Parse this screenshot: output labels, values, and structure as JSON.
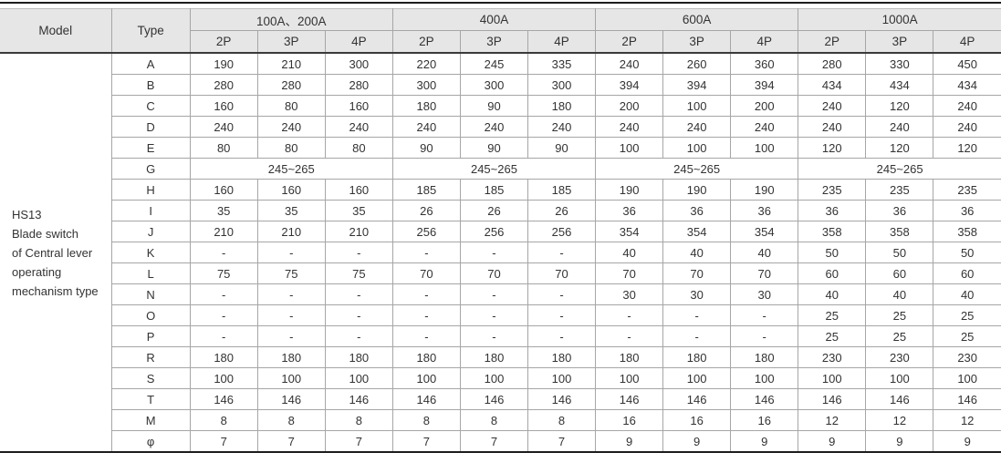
{
  "table": {
    "header": {
      "model_label": "Model",
      "type_label": "Type",
      "groups": [
        "100A、200A",
        "400A",
        "600A",
        "1000A"
      ],
      "pole_labels": [
        "2P",
        "3P",
        "4P"
      ]
    },
    "model_cell": {
      "lines": [
        "HS13",
        "Blade switch",
        "of Central lever",
        "operating",
        "mechanism type"
      ]
    },
    "rows": [
      {
        "type": "A",
        "values": [
          "190",
          "210",
          "300",
          "220",
          "245",
          "335",
          "240",
          "260",
          "360",
          "280",
          "330",
          "450"
        ]
      },
      {
        "type": "B",
        "values": [
          "280",
          "280",
          "280",
          "300",
          "300",
          "300",
          "394",
          "394",
          "394",
          "434",
          "434",
          "434"
        ]
      },
      {
        "type": "C",
        "values": [
          "160",
          "80",
          "160",
          "180",
          "90",
          "180",
          "200",
          "100",
          "200",
          "240",
          "120",
          "240"
        ]
      },
      {
        "type": "D",
        "values": [
          "240",
          "240",
          "240",
          "240",
          "240",
          "240",
          "240",
          "240",
          "240",
          "240",
          "240",
          "240"
        ]
      },
      {
        "type": "E",
        "values": [
          "80",
          "80",
          "80",
          "90",
          "90",
          "90",
          "100",
          "100",
          "100",
          "120",
          "120",
          "120"
        ]
      },
      {
        "type": "G",
        "merged": true,
        "values": [
          "245~265",
          "245~265",
          "245~265",
          "245~265"
        ]
      },
      {
        "type": "H",
        "values": [
          "160",
          "160",
          "160",
          "185",
          "185",
          "185",
          "190",
          "190",
          "190",
          "235",
          "235",
          "235"
        ]
      },
      {
        "type": "I",
        "values": [
          "35",
          "35",
          "35",
          "26",
          "26",
          "26",
          "36",
          "36",
          "36",
          "36",
          "36",
          "36"
        ]
      },
      {
        "type": "J",
        "values": [
          "210",
          "210",
          "210",
          "256",
          "256",
          "256",
          "354",
          "354",
          "354",
          "358",
          "358",
          "358"
        ]
      },
      {
        "type": "K",
        "values": [
          "-",
          "-",
          "-",
          "-",
          "-",
          "-",
          "40",
          "40",
          "40",
          "50",
          "50",
          "50"
        ]
      },
      {
        "type": "L",
        "values": [
          "75",
          "75",
          "75",
          "70",
          "70",
          "70",
          "70",
          "70",
          "70",
          "60",
          "60",
          "60"
        ]
      },
      {
        "type": "N",
        "values": [
          "-",
          "-",
          "-",
          "-",
          "-",
          "-",
          "30",
          "30",
          "30",
          "40",
          "40",
          "40"
        ]
      },
      {
        "type": "O",
        "values": [
          "-",
          "-",
          "-",
          "-",
          "-",
          "-",
          "-",
          "-",
          "-",
          "25",
          "25",
          "25"
        ]
      },
      {
        "type": "P",
        "values": [
          "-",
          "-",
          "-",
          "-",
          "-",
          "-",
          "-",
          "-",
          "-",
          "25",
          "25",
          "25"
        ]
      },
      {
        "type": "R",
        "values": [
          "180",
          "180",
          "180",
          "180",
          "180",
          "180",
          "180",
          "180",
          "180",
          "230",
          "230",
          "230"
        ]
      },
      {
        "type": "S",
        "values": [
          "100",
          "100",
          "100",
          "100",
          "100",
          "100",
          "100",
          "100",
          "100",
          "100",
          "100",
          "100"
        ]
      },
      {
        "type": "T",
        "values": [
          "146",
          "146",
          "146",
          "146",
          "146",
          "146",
          "146",
          "146",
          "146",
          "146",
          "146",
          "146"
        ]
      },
      {
        "type": "M",
        "values": [
          "8",
          "8",
          "8",
          "8",
          "8",
          "8",
          "16",
          "16",
          "16",
          "12",
          "12",
          "12"
        ]
      },
      {
        "type": "φ",
        "values": [
          "7",
          "7",
          "7",
          "7",
          "7",
          "7",
          "9",
          "9",
          "9",
          "9",
          "9",
          "9"
        ]
      }
    ],
    "colors": {
      "header_bg": "#e6e6e6",
      "border_light": "#a6a6a6",
      "border_dark": "#1c1c1c",
      "text": "#333333"
    }
  }
}
